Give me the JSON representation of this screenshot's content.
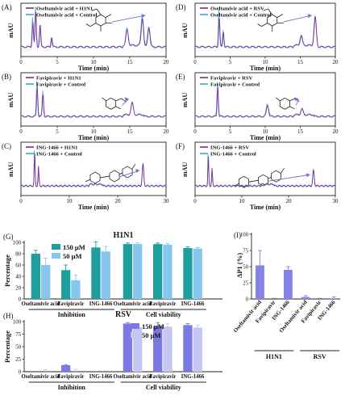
{
  "colors": {
    "chrom_a": "#8e1f8e",
    "chrom_b": "#39a9d6",
    "h1n1_150": "#1f9e9f",
    "h1n1_50": "#86c6ef",
    "rsv_150": "#7b79e4",
    "rsv_50": "#c6c6f2",
    "dp_bar": "#8484e6",
    "arrow": "#6f6fd8"
  },
  "chromatograms": [
    {
      "panel": "(A)",
      "legend": [
        "Oseltamivir acid + H1N1",
        "Oseltamivir acid + Control"
      ],
      "ylabel": "mAU",
      "xlabel": "Time (min)",
      "xticks": [
        "0",
        "5",
        "10",
        "15",
        "20"
      ],
      "xmax": 20,
      "molecule": "oseltamivir",
      "peaks": [
        [
          1.6,
          0.75
        ],
        [
          2.0,
          0.95
        ],
        [
          2.6,
          0.55
        ],
        [
          4.2,
          0.25
        ],
        [
          14.6,
          0.4
        ],
        [
          16.7,
          0.7
        ],
        [
          17.6,
          0.5
        ]
      ]
    },
    {
      "panel": "(B)",
      "legend": [
        "Favipiravir + H1N1",
        "Favipiravir + Control"
      ],
      "ylabel": "mAU",
      "xlabel": "Time (min)",
      "xticks": [
        "0",
        "5",
        "10",
        "15",
        "20"
      ],
      "xmax": 20,
      "molecule": "favipiravir",
      "peaks": [
        [
          2.2,
          0.9
        ],
        [
          3.0,
          0.6
        ],
        [
          15.3,
          0.3
        ]
      ]
    },
    {
      "panel": "(C)",
      "legend": [
        "ING-1466 + H1N1",
        "ING-1466 + Control"
      ],
      "ylabel": "mAU",
      "xlabel": "Time (min)",
      "xticks": [
        "0",
        "10",
        "20",
        "30"
      ],
      "xmax": 30,
      "molecule": "ing1466",
      "peaks": [
        [
          2.8,
          1.0
        ],
        [
          3.6,
          0.5
        ],
        [
          25.2,
          0.55
        ]
      ]
    },
    {
      "panel": "(D)",
      "legend": [
        "Oseltamivir acid + RSV",
        "Oseltamivir acid + Control"
      ],
      "ylabel": "mAU",
      "xlabel": "Time (min)",
      "xticks": [
        "0",
        "5",
        "10",
        "15",
        "20"
      ],
      "xmax": 20,
      "molecule": "oseltamivir",
      "peaks": [
        [
          3.4,
          0.95
        ],
        [
          4.0,
          0.4
        ],
        [
          15.1,
          0.25
        ],
        [
          17.1,
          0.75
        ]
      ]
    },
    {
      "panel": "(E)",
      "legend": [
        "Favipiravir + RSV",
        "Favipiravir + Control"
      ],
      "ylabel": "mAU",
      "xlabel": "Time (min)",
      "xticks": [
        "0",
        "5",
        "10",
        "15",
        "20"
      ],
      "xmax": 20,
      "molecule": "favipiravir",
      "peaks": [
        [
          3.2,
          0.9
        ],
        [
          10.3,
          0.3
        ],
        [
          15.2,
          0.15
        ]
      ]
    },
    {
      "panel": "(F)",
      "legend": [
        "ING-1466 + RSV",
        "ING-1466 + Control"
      ],
      "ylabel": "mAU",
      "xlabel": "Time (min)",
      "xticks": [
        "0",
        "10",
        "20",
        "30"
      ],
      "xmax": 30,
      "molecule": "ing1466",
      "peaks": [
        [
          2.8,
          0.9
        ],
        [
          3.6,
          0.45
        ],
        [
          25.3,
          0.4
        ]
      ]
    }
  ],
  "chart_data": [
    {
      "type": "bar",
      "panel": "(G)",
      "title": "H1N1",
      "ylabel": "Percentage",
      "ylim": [
        0,
        100
      ],
      "yticks": [
        0,
        20,
        40,
        60,
        80,
        100
      ],
      "categories": [
        "Oseltamivir acid",
        "Favipiravir",
        "ING-1466",
        "Oseltamivir acid",
        "Favipiravir",
        "ING-1466"
      ],
      "groups": [
        "Inhibition",
        "Cell viability"
      ],
      "series": [
        {
          "name": "150 μM",
          "values": [
            80,
            51,
            91,
            97,
            97,
            90
          ],
          "errors": [
            6,
            9,
            10,
            2,
            2,
            2
          ]
        },
        {
          "name": "50 μM",
          "values": [
            60,
            33,
            84,
            97,
            96,
            89
          ],
          "errors": [
            12,
            9,
            9,
            2,
            2,
            2
          ]
        }
      ]
    },
    {
      "type": "bar",
      "panel": "(H)",
      "title": "RSV",
      "ylabel": "Percentage",
      "ylim": [
        0,
        100
      ],
      "yticks": [
        0,
        25,
        50,
        75,
        100
      ],
      "categories": [
        "Oseltamivir acid",
        "Favipiravir",
        "ING-1466",
        "Oseltamivir acid",
        "Favipiravir",
        "ING-1466"
      ],
      "groups": [
        "Inhibition",
        "Cell viability"
      ],
      "series": [
        {
          "name": "150 μM",
          "values": [
            0,
            13,
            0,
            96,
            91,
            93
          ],
          "errors": [
            0,
            1,
            0,
            2,
            7,
            3
          ]
        },
        {
          "name": "50 μM",
          "values": [
            0,
            0,
            0,
            89,
            90,
            88
          ],
          "errors": [
            4,
            5,
            0,
            3,
            6,
            5
          ]
        }
      ]
    },
    {
      "type": "bar",
      "panel": "(I)",
      "ylabel": "ΔP1 (%)",
      "ylim": [
        0,
        100
      ],
      "yticks": [
        0,
        25,
        50,
        75,
        100
      ],
      "categories": [
        "Oseltamivir acid",
        "Favipiravir",
        "ING-1466",
        "Oseltamivir acid",
        "Favipiravir",
        "ING-1466"
      ],
      "groups": [
        "H1N1",
        "RSV"
      ],
      "series": [
        {
          "values": [
            52,
            0,
            45,
            3,
            0,
            1
          ],
          "errors": [
            23,
            1,
            5,
            2,
            1,
            2
          ]
        }
      ]
    }
  ]
}
